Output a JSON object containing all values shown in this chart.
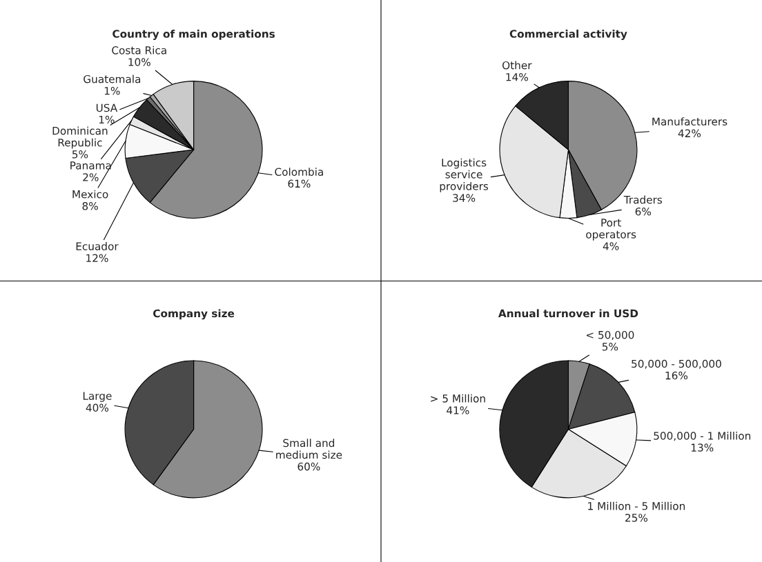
{
  "chart_data": [
    {
      "type": "pie",
      "title": "Country of main operations",
      "categories": [
        "Colombia",
        "Ecuador",
        "Mexico",
        "Panama",
        "Dominican\nRepublic",
        "USA",
        "Guatemala",
        "Costa Rica"
      ],
      "values": [
        61,
        12,
        8,
        2,
        5,
        1,
        1,
        10
      ],
      "value_labels": [
        "61%",
        "12%",
        "8%",
        "2%",
        "5%",
        "1%",
        "1%",
        "10%"
      ],
      "colors": [
        "#8c8c8c",
        "#4a4a4a",
        "#f8f8f8",
        "#e6e6e6",
        "#2a2a2a",
        "#6e6e6e",
        "#a8a8a8",
        "#cacaca"
      ]
    },
    {
      "type": "pie",
      "title": "Commercial activity",
      "categories": [
        "Manufacturers",
        "Traders",
        "Port\noperators",
        "Logistics\nservice\nproviders",
        "Other"
      ],
      "values": [
        42,
        6,
        4,
        34,
        14
      ],
      "value_labels": [
        "42%",
        "6%",
        "4%",
        "34%",
        "14%"
      ],
      "colors": [
        "#8c8c8c",
        "#4a4a4a",
        "#f8f8f8",
        "#e6e6e6",
        "#2a2a2a"
      ]
    },
    {
      "type": "pie",
      "title": "Company size",
      "categories": [
        "Small and\nmedium size",
        "Large"
      ],
      "values": [
        60,
        40
      ],
      "value_labels": [
        "60%",
        "40%"
      ],
      "colors": [
        "#8c8c8c",
        "#4a4a4a"
      ]
    },
    {
      "type": "pie",
      "title": "Annual turnover in USD",
      "categories": [
        "< 50,000",
        "50,000 - 500,000",
        "500,000 - 1 Million",
        "1 Million - 5 Million",
        "> 5 Million"
      ],
      "values": [
        5,
        16,
        13,
        25,
        41
      ],
      "value_labels": [
        "5%",
        "16%",
        "13%",
        "25%",
        "41%"
      ],
      "colors": [
        "#8c8c8c",
        "#4a4a4a",
        "#f8f8f8",
        "#e6e6e6",
        "#2a2a2a"
      ]
    }
  ]
}
